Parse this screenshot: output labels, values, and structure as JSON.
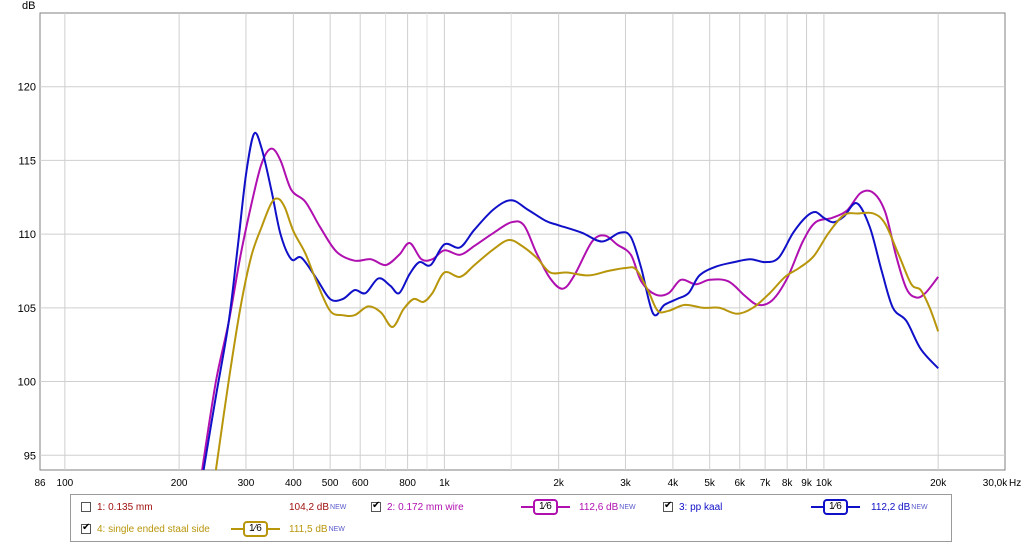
{
  "chart_data": {
    "type": "line",
    "title": "",
    "xlabel": "Hz",
    "ylabel": "dB",
    "x_scale": "log",
    "xlim": [
      86,
      30000
    ],
    "ylim": [
      94,
      125
    ],
    "grid": true,
    "y_ticks": [
      {
        "value": 95,
        "label": "95"
      },
      {
        "value": 100,
        "label": "100"
      },
      {
        "value": 105,
        "label": "105"
      },
      {
        "value": 110,
        "label": "110"
      },
      {
        "value": 115,
        "label": "115"
      },
      {
        "value": 120,
        "label": "120"
      }
    ],
    "x_ticks": [
      {
        "value": 86,
        "label": "86"
      },
      {
        "value": 100,
        "label": "100"
      },
      {
        "value": 200,
        "label": "200"
      },
      {
        "value": 300,
        "label": "300"
      },
      {
        "value": 400,
        "label": "400"
      },
      {
        "value": 500,
        "label": "500"
      },
      {
        "value": 600,
        "label": "600"
      },
      {
        "value": 800,
        "label": "800"
      },
      {
        "value": 1000,
        "label": "1k"
      },
      {
        "value": 2000,
        "label": "2k"
      },
      {
        "value": 3000,
        "label": "3k"
      },
      {
        "value": 4000,
        "label": "4k"
      },
      {
        "value": 5000,
        "label": "5k"
      },
      {
        "value": 6000,
        "label": "6k"
      },
      {
        "value": 7000,
        "label": "7k"
      },
      {
        "value": 8000,
        "label": "8k"
      },
      {
        "value": 9000,
        "label": "9k"
      },
      {
        "value": 10000,
        "label": "10k"
      },
      {
        "value": 20000,
        "label": "20k"
      },
      {
        "value": 30000,
        "label": "30,0k"
      }
    ],
    "minor_x_gridlines": [
      700,
      900,
      1500
    ],
    "series": [
      {
        "name": "2: 0.172 mm wire",
        "color": "#b010b0",
        "points": [
          [
            230,
            94
          ],
          [
            250,
            100
          ],
          [
            270,
            104
          ],
          [
            290,
            108.5
          ],
          [
            310,
            112
          ],
          [
            330,
            114.8
          ],
          [
            350,
            115.8
          ],
          [
            370,
            115
          ],
          [
            395,
            113
          ],
          [
            430,
            112.2
          ],
          [
            470,
            110.5
          ],
          [
            520,
            108.8
          ],
          [
            580,
            108.2
          ],
          [
            640,
            108.3
          ],
          [
            700,
            107.9
          ],
          [
            760,
            108.6
          ],
          [
            810,
            109.4
          ],
          [
            870,
            108.3
          ],
          [
            930,
            108.3
          ],
          [
            1000,
            108.9
          ],
          [
            1100,
            108.6
          ],
          [
            1200,
            109.2
          ],
          [
            1350,
            110.1
          ],
          [
            1500,
            110.8
          ],
          [
            1620,
            110.6
          ],
          [
            1750,
            108.7
          ],
          [
            1900,
            107
          ],
          [
            2050,
            106.3
          ],
          [
            2200,
            107.2
          ],
          [
            2450,
            109.5
          ],
          [
            2650,
            109.9
          ],
          [
            2850,
            109.3
          ],
          [
            3100,
            108.6
          ],
          [
            3300,
            106.8
          ],
          [
            3600,
            105.9
          ],
          [
            3900,
            106
          ],
          [
            4200,
            106.9
          ],
          [
            4600,
            106.6
          ],
          [
            5000,
            106.9
          ],
          [
            5600,
            106.8
          ],
          [
            6200,
            105.8
          ],
          [
            6700,
            105.2
          ],
          [
            7300,
            105.5
          ],
          [
            8000,
            107
          ],
          [
            8800,
            109.5
          ],
          [
            9500,
            110.8
          ],
          [
            10500,
            111.1
          ],
          [
            11500,
            111.6
          ],
          [
            12500,
            112.8
          ],
          [
            13500,
            112.8
          ],
          [
            14500,
            111.5
          ],
          [
            15500,
            108.5
          ],
          [
            16500,
            106.3
          ],
          [
            17500,
            105.7
          ],
          [
            18500,
            106
          ],
          [
            20000,
            107.1
          ]
        ]
      },
      {
        "name": "3: pp kaal",
        "color": "#1010c8",
        "points": [
          [
            232,
            94
          ],
          [
            250,
            99
          ],
          [
            270,
            104
          ],
          [
            285,
            109
          ],
          [
            300,
            114
          ],
          [
            315,
            116.8
          ],
          [
            330,
            115.8
          ],
          [
            350,
            113
          ],
          [
            370,
            110
          ],
          [
            395,
            108.3
          ],
          [
            420,
            108.4
          ],
          [
            460,
            107
          ],
          [
            500,
            105.6
          ],
          [
            540,
            105.6
          ],
          [
            580,
            106.2
          ],
          [
            620,
            106
          ],
          [
            670,
            107
          ],
          [
            720,
            106.5
          ],
          [
            760,
            106
          ],
          [
            810,
            107.3
          ],
          [
            860,
            108.1
          ],
          [
            920,
            107.9
          ],
          [
            1000,
            109.3
          ],
          [
            1100,
            109.1
          ],
          [
            1200,
            110.3
          ],
          [
            1350,
            111.7
          ],
          [
            1500,
            112.3
          ],
          [
            1650,
            111.7
          ],
          [
            1850,
            110.9
          ],
          [
            2000,
            110.6
          ],
          [
            2300,
            110.1
          ],
          [
            2600,
            109.5
          ],
          [
            2900,
            110.1
          ],
          [
            3100,
            109.8
          ],
          [
            3300,
            107.7
          ],
          [
            3550,
            104.6
          ],
          [
            3800,
            105.2
          ],
          [
            4100,
            105.6
          ],
          [
            4400,
            106
          ],
          [
            4700,
            107.2
          ],
          [
            5200,
            107.8
          ],
          [
            5800,
            108.1
          ],
          [
            6400,
            108.3
          ],
          [
            7000,
            108.1
          ],
          [
            7600,
            108.4
          ],
          [
            8300,
            110.1
          ],
          [
            9000,
            111.2
          ],
          [
            9500,
            111.5
          ],
          [
            10000,
            111.1
          ],
          [
            10600,
            110.8
          ],
          [
            11300,
            111.2
          ],
          [
            12200,
            112.1
          ],
          [
            13200,
            110.5
          ],
          [
            14200,
            107.5
          ],
          [
            15200,
            105
          ],
          [
            16500,
            104.1
          ],
          [
            18000,
            102.2
          ],
          [
            20000,
            100.9
          ]
        ]
      },
      {
        "name": "4: single ended staal side",
        "color": "#b8960c",
        "points": [
          [
            250,
            94
          ],
          [
            270,
            100
          ],
          [
            290,
            105
          ],
          [
            310,
            108.5
          ],
          [
            330,
            110.5
          ],
          [
            350,
            112.1
          ],
          [
            365,
            112.4
          ],
          [
            380,
            111.8
          ],
          [
            400,
            110.2
          ],
          [
            430,
            108.7
          ],
          [
            460,
            106.8
          ],
          [
            500,
            104.8
          ],
          [
            540,
            104.5
          ],
          [
            580,
            104.5
          ],
          [
            630,
            105.1
          ],
          [
            680,
            104.7
          ],
          [
            730,
            103.7
          ],
          [
            780,
            104.9
          ],
          [
            830,
            105.6
          ],
          [
            880,
            105.4
          ],
          [
            930,
            106
          ],
          [
            1000,
            107.4
          ],
          [
            1100,
            107.1
          ],
          [
            1200,
            107.9
          ],
          [
            1350,
            109
          ],
          [
            1480,
            109.6
          ],
          [
            1600,
            109.2
          ],
          [
            1750,
            108.4
          ],
          [
            1900,
            107.4
          ],
          [
            2100,
            107.4
          ],
          [
            2400,
            107.2
          ],
          [
            2700,
            107.5
          ],
          [
            3000,
            107.7
          ],
          [
            3200,
            107.6
          ],
          [
            3450,
            106.1
          ],
          [
            3650,
            104.8
          ],
          [
            3900,
            104.8
          ],
          [
            4300,
            105.2
          ],
          [
            4800,
            105
          ],
          [
            5300,
            105
          ],
          [
            5900,
            104.6
          ],
          [
            6500,
            105
          ],
          [
            7200,
            106
          ],
          [
            7900,
            107.1
          ],
          [
            8600,
            107.7
          ],
          [
            9400,
            108.5
          ],
          [
            10300,
            110.1
          ],
          [
            11300,
            111.3
          ],
          [
            12300,
            111.4
          ],
          [
            13500,
            111.4
          ],
          [
            14500,
            110.7
          ],
          [
            15800,
            108.5
          ],
          [
            17000,
            106.6
          ],
          [
            18000,
            106.2
          ],
          [
            19000,
            105
          ],
          [
            20000,
            103.4
          ]
        ]
      }
    ],
    "legend": [
      {
        "id": "l1",
        "label": "1: 0.135 mm",
        "checked": false,
        "value": "104,2 dB",
        "badge": "NEW",
        "color": "#a01010",
        "smoothing": ""
      },
      {
        "id": "l2",
        "label": "2: 0.172 mm wire",
        "checked": true,
        "value": "112,6 dB",
        "badge": "NEW",
        "color": "#b010b0",
        "smoothing": "1⁄6"
      },
      {
        "id": "l3",
        "label": "3: pp kaal",
        "checked": true,
        "value": "112,2 dB",
        "badge": "NEW",
        "color": "#1010c8",
        "smoothing": "1⁄6"
      },
      {
        "id": "l4",
        "label": "4: single ended staal side",
        "checked": true,
        "value": "111,5 dB",
        "badge": "NEW",
        "color": "#b8960c",
        "smoothing": "1⁄6"
      }
    ]
  }
}
